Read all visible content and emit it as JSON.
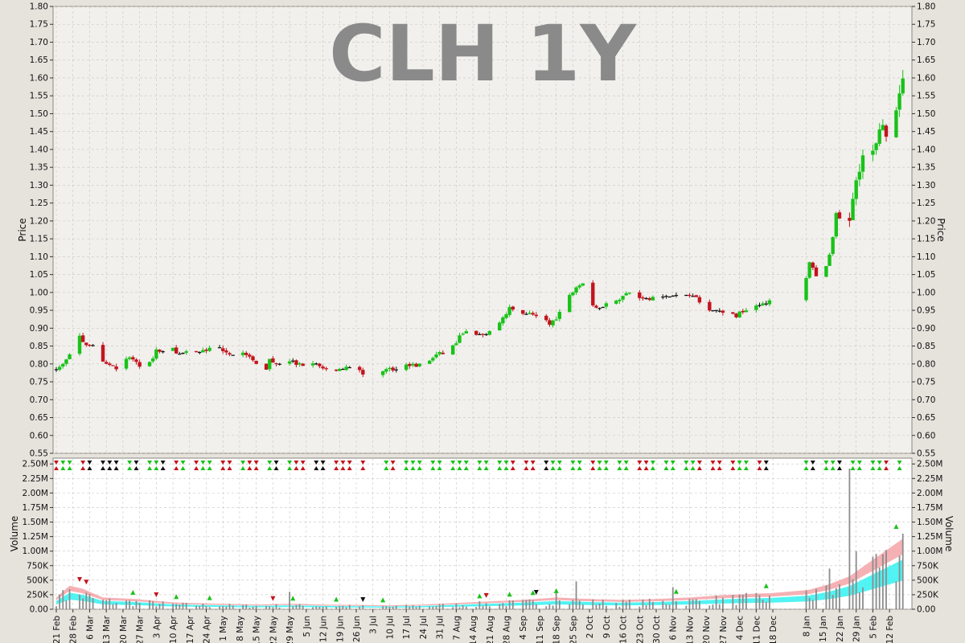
{
  "chart_data": {
    "type": "candlestick",
    "title": "CLH 1Y",
    "colors": {
      "up": "#19c219",
      "down": "#c3141e",
      "flat": "#111111",
      "plot_bg": "#f1f0ed",
      "volume_bg": "#ffffff",
      "grid": "#c9c6bf",
      "ma_band_pink": "#f5a3a8",
      "ma_band_cyan": "#3ef2f2",
      "volume_bar": "#8c8c8c"
    },
    "price_panel": {
      "ylabel": "Price",
      "ylim": [
        0.55,
        1.8
      ],
      "ytick_labels": [
        "0.55",
        "0.60",
        "0.65",
        "0.70",
        "0.75",
        "0.80",
        "0.85",
        "0.90",
        "0.95",
        "1.00",
        "1.05",
        "1.10",
        "1.15",
        "1.20",
        "1.25",
        "1.30",
        "1.35",
        "1.40",
        "1.45",
        "1.50",
        "1.55",
        "1.60",
        "1.65",
        "1.70",
        "1.75",
        "1.80"
      ]
    },
    "volume_panel": {
      "ylabel": "Volume",
      "ylim": [
        0,
        2600000
      ],
      "ytick_labels": [
        "0.00",
        "250K",
        "500K",
        "750K",
        "1.00M",
        "1.25M",
        "1.50M",
        "1.75M",
        "2.00M",
        "2.25M",
        "2.50M"
      ]
    },
    "x_labels": [
      "21 Feb",
      "28 Feb",
      "6 Mar",
      "13 Mar",
      "20 Mar",
      "27 Mar",
      "3 Apr",
      "10 Apr",
      "17 Apr",
      "24 Apr",
      "1 May",
      "8 May",
      "15 May",
      "22 May",
      "29 May",
      "5 Jun",
      "12 Jun",
      "19 Jun",
      "26 Jun",
      "3 Jul",
      "10 Jul",
      "17 Jul",
      "24 Jul",
      "31 Jul",
      "7 Aug",
      "14 Aug",
      "21 Aug",
      "28 Aug",
      "4 Sep",
      "11 Sep",
      "18 Sep",
      "25 Sep",
      "2 Oct",
      "9 Oct",
      "16 Oct",
      "23 Oct",
      "30 Oct",
      "6 Nov",
      "13 Nov",
      "20 Nov",
      "27 Nov",
      "4 Dec",
      "11 Dec",
      "18 Dec",
      "8 Jan",
      "15 Jan",
      "22 Jan",
      "29 Jan",
      "5 Feb",
      "12 Feb"
    ],
    "x_label_days": [
      0,
      5,
      10,
      15,
      20,
      25,
      30,
      35,
      40,
      45,
      50,
      55,
      60,
      65,
      70,
      75,
      80,
      85,
      90,
      95,
      100,
      105,
      110,
      115,
      120,
      125,
      130,
      135,
      140,
      145,
      150,
      155,
      160,
      165,
      170,
      175,
      180,
      185,
      190,
      195,
      200,
      205,
      210,
      215,
      225,
      230,
      235,
      240,
      245,
      250
    ],
    "price_anchors": [
      [
        0,
        0.785
      ],
      [
        2,
        0.8
      ],
      [
        4,
        0.83
      ],
      [
        6,
        0.89
      ],
      [
        8,
        0.86
      ],
      [
        10,
        0.855
      ],
      [
        12,
        0.845
      ],
      [
        14,
        0.81
      ],
      [
        16,
        0.8
      ],
      [
        18,
        0.79
      ],
      [
        20,
        0.8
      ],
      [
        22,
        0.82
      ],
      [
        24,
        0.8
      ],
      [
        26,
        0.795
      ],
      [
        28,
        0.8
      ],
      [
        30,
        0.84
      ],
      [
        32,
        0.83
      ],
      [
        34,
        0.86
      ],
      [
        36,
        0.835
      ],
      [
        38,
        0.83
      ],
      [
        40,
        0.83
      ],
      [
        42,
        0.83
      ],
      [
        44,
        0.835
      ],
      [
        46,
        0.84
      ],
      [
        48,
        0.845
      ],
      [
        50,
        0.84
      ],
      [
        52,
        0.83
      ],
      [
        54,
        0.82
      ],
      [
        55,
        0.95
      ],
      [
        56,
        0.83
      ],
      [
        58,
        0.815
      ],
      [
        60,
        0.8
      ],
      [
        62,
        0.765
      ],
      [
        64,
        0.81
      ],
      [
        66,
        0.8
      ],
      [
        68,
        0.79
      ],
      [
        70,
        0.81
      ],
      [
        72,
        0.8
      ],
      [
        74,
        0.8
      ],
      [
        76,
        0.8
      ],
      [
        78,
        0.8
      ],
      [
        80,
        0.79
      ],
      [
        82,
        0.785
      ],
      [
        84,
        0.785
      ],
      [
        86,
        0.79
      ],
      [
        88,
        0.795
      ],
      [
        90,
        0.785
      ],
      [
        92,
        0.775
      ],
      [
        96,
        0.78
      ],
      [
        98,
        0.785
      ],
      [
        100,
        0.785
      ],
      [
        102,
        0.79
      ],
      [
        104,
        0.795
      ],
      [
        106,
        0.8
      ],
      [
        108,
        0.795
      ],
      [
        110,
        0.8
      ],
      [
        112,
        0.81
      ],
      [
        114,
        0.825
      ],
      [
        116,
        0.83
      ],
      [
        118,
        0.84
      ],
      [
        120,
        0.86
      ],
      [
        122,
        0.89
      ],
      [
        124,
        0.885
      ],
      [
        126,
        0.88
      ],
      [
        128,
        0.88
      ],
      [
        130,
        0.89
      ],
      [
        132,
        0.905
      ],
      [
        134,
        0.93
      ],
      [
        136,
        0.955
      ],
      [
        138,
        0.945
      ],
      [
        140,
        0.945
      ],
      [
        142,
        0.94
      ],
      [
        144,
        0.935
      ],
      [
        146,
        0.925
      ],
      [
        148,
        0.91
      ],
      [
        150,
        0.93
      ],
      [
        152,
        0.96
      ],
      [
        154,
        0.99
      ],
      [
        156,
        1.02
      ],
      [
        158,
        1.03
      ],
      [
        160,
        0.98
      ],
      [
        162,
        0.955
      ],
      [
        164,
        0.965
      ],
      [
        166,
        0.97
      ],
      [
        168,
        0.98
      ],
      [
        170,
        0.99
      ],
      [
        172,
        1.0
      ],
      [
        174,
        0.98
      ],
      [
        176,
        0.985
      ],
      [
        178,
        0.985
      ],
      [
        180,
        0.99
      ],
      [
        182,
        0.985
      ],
      [
        184,
        0.99
      ],
      [
        186,
        0.99
      ],
      [
        188,
        0.995
      ],
      [
        190,
        0.99
      ],
      [
        192,
        0.985
      ],
      [
        194,
        0.97
      ],
      [
        196,
        0.955
      ],
      [
        198,
        0.95
      ],
      [
        200,
        0.945
      ],
      [
        202,
        0.935
      ],
      [
        204,
        0.935
      ],
      [
        206,
        0.95
      ],
      [
        208,
        0.96
      ],
      [
        210,
        0.965
      ],
      [
        212,
        0.97
      ],
      [
        214,
        0.975
      ],
      [
        216,
        0.98
      ],
      [
        218,
        0.98
      ],
      [
        220,
        0.985
      ],
      [
        222,
        0.99
      ],
      [
        224,
        1.0
      ],
      [
        226,
        1.08
      ],
      [
        228,
        1.05
      ],
      [
        230,
        1.05
      ],
      [
        232,
        1.1
      ],
      [
        234,
        1.23
      ],
      [
        236,
        1.19
      ],
      [
        238,
        1.205
      ],
      [
        240,
        1.33
      ],
      [
        242,
        1.38
      ],
      [
        244,
        1.37
      ],
      [
        246,
        1.41
      ],
      [
        248,
        1.47
      ],
      [
        250,
        1.43
      ],
      [
        252,
        1.52
      ],
      [
        254,
        1.59
      ]
    ],
    "volume_anchors": [
      [
        0,
        150000
      ],
      [
        4,
        300000
      ],
      [
        8,
        260000
      ],
      [
        14,
        150000
      ],
      [
        24,
        130000
      ],
      [
        34,
        90000
      ],
      [
        40,
        80000
      ],
      [
        50,
        70000
      ],
      [
        60,
        60000
      ],
      [
        70,
        70000
      ],
      [
        80,
        60000
      ],
      [
        90,
        55000
      ],
      [
        100,
        50000
      ],
      [
        110,
        60000
      ],
      [
        120,
        80000
      ],
      [
        130,
        100000
      ],
      [
        140,
        120000
      ],
      [
        150,
        150000
      ],
      [
        160,
        130000
      ],
      [
        170,
        120000
      ],
      [
        180,
        130000
      ],
      [
        190,
        150000
      ],
      [
        200,
        180000
      ],
      [
        210,
        200000
      ],
      [
        220,
        210000
      ],
      [
        226,
        250000
      ],
      [
        232,
        320000
      ],
      [
        238,
        420000
      ],
      [
        244,
        600000
      ],
      [
        250,
        780000
      ],
      [
        254,
        900000
      ]
    ],
    "volume_spikes": [
      [
        2,
        330000
      ],
      [
        5,
        380000
      ],
      [
        55,
        260000
      ],
      [
        70,
        300000
      ],
      [
        150,
        300000
      ],
      [
        156,
        480000
      ],
      [
        185,
        380000
      ],
      [
        218,
        260000
      ],
      [
        228,
        350000
      ],
      [
        232,
        700000
      ],
      [
        238,
        2420000
      ],
      [
        240,
        1000000
      ],
      [
        254,
        1300000
      ]
    ]
  }
}
